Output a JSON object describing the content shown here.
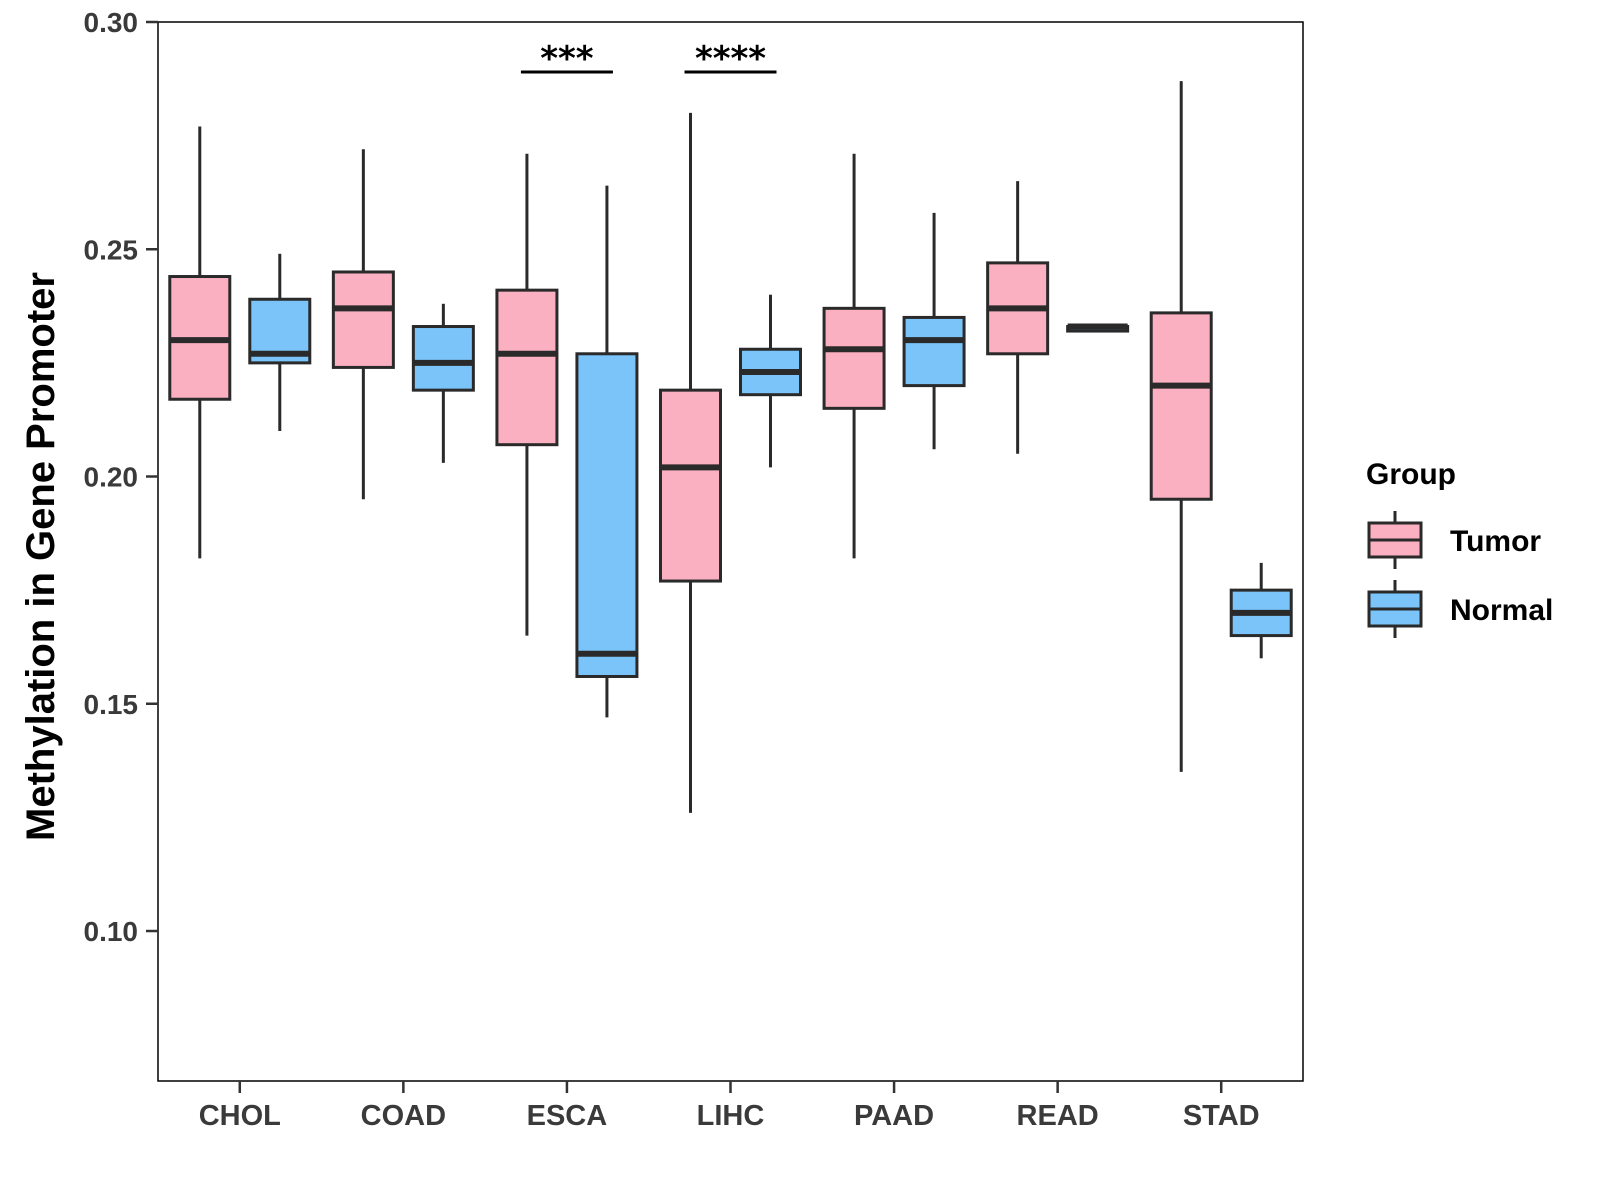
{
  "chart_data": {
    "type": "boxplot",
    "title": "",
    "xlabel": "",
    "ylabel": "Methylation in Gene Promoter",
    "ylim": [
      0.067,
      0.3
    ],
    "yticks": [
      0.1,
      0.15,
      0.2,
      0.25,
      0.3
    ],
    "ytick_labels": [
      "0.10",
      "0.15",
      "0.20",
      "0.25",
      "0.30"
    ],
    "grid": false,
    "categories": [
      "CHOL",
      "COAD",
      "ESCA",
      "LIHC",
      "PAAD",
      "READ",
      "STAD"
    ],
    "legend": {
      "title": "Group",
      "position": "right",
      "entries": [
        {
          "name": "Tumor",
          "color": "#FBB0C2"
        },
        {
          "name": "Normal",
          "color": "#7BC4F9"
        }
      ]
    },
    "series": [
      {
        "name": "Tumor",
        "color": "#FBB0C2",
        "boxes": [
          {
            "min": 0.182,
            "q1": 0.217,
            "median": 0.23,
            "q3": 0.244,
            "max": 0.277
          },
          {
            "min": 0.195,
            "q1": 0.224,
            "median": 0.237,
            "q3": 0.245,
            "max": 0.272
          },
          {
            "min": 0.165,
            "q1": 0.207,
            "median": 0.227,
            "q3": 0.241,
            "max": 0.271
          },
          {
            "min": 0.126,
            "q1": 0.177,
            "median": 0.202,
            "q3": 0.219,
            "max": 0.28
          },
          {
            "min": 0.182,
            "q1": 0.215,
            "median": 0.228,
            "q3": 0.237,
            "max": 0.271
          },
          {
            "min": 0.205,
            "q1": 0.227,
            "median": 0.237,
            "q3": 0.247,
            "max": 0.265
          },
          {
            "min": 0.135,
            "q1": 0.195,
            "median": 0.22,
            "q3": 0.236,
            "max": 0.287
          }
        ]
      },
      {
        "name": "Normal",
        "color": "#7BC4F9",
        "boxes": [
          {
            "min": 0.21,
            "q1": 0.225,
            "median": 0.227,
            "q3": 0.239,
            "max": 0.249
          },
          {
            "min": 0.203,
            "q1": 0.219,
            "median": 0.225,
            "q3": 0.233,
            "max": 0.238
          },
          {
            "min": 0.147,
            "q1": 0.156,
            "median": 0.161,
            "q3": 0.227,
            "max": 0.264
          },
          {
            "min": 0.202,
            "q1": 0.218,
            "median": 0.223,
            "q3": 0.228,
            "max": 0.24
          },
          {
            "min": 0.206,
            "q1": 0.22,
            "median": 0.23,
            "q3": 0.235,
            "max": 0.258
          },
          {
            "min": 0.232,
            "q1": 0.232,
            "median": 0.233,
            "q3": 0.233,
            "max": 0.233
          },
          {
            "min": 0.16,
            "q1": 0.165,
            "median": 0.17,
            "q3": 0.175,
            "max": 0.181
          }
        ]
      }
    ],
    "annotations": [
      {
        "category": "ESCA",
        "text": "***",
        "y": 0.289
      },
      {
        "category": "LIHC",
        "text": "****",
        "y": 0.289
      }
    ]
  }
}
